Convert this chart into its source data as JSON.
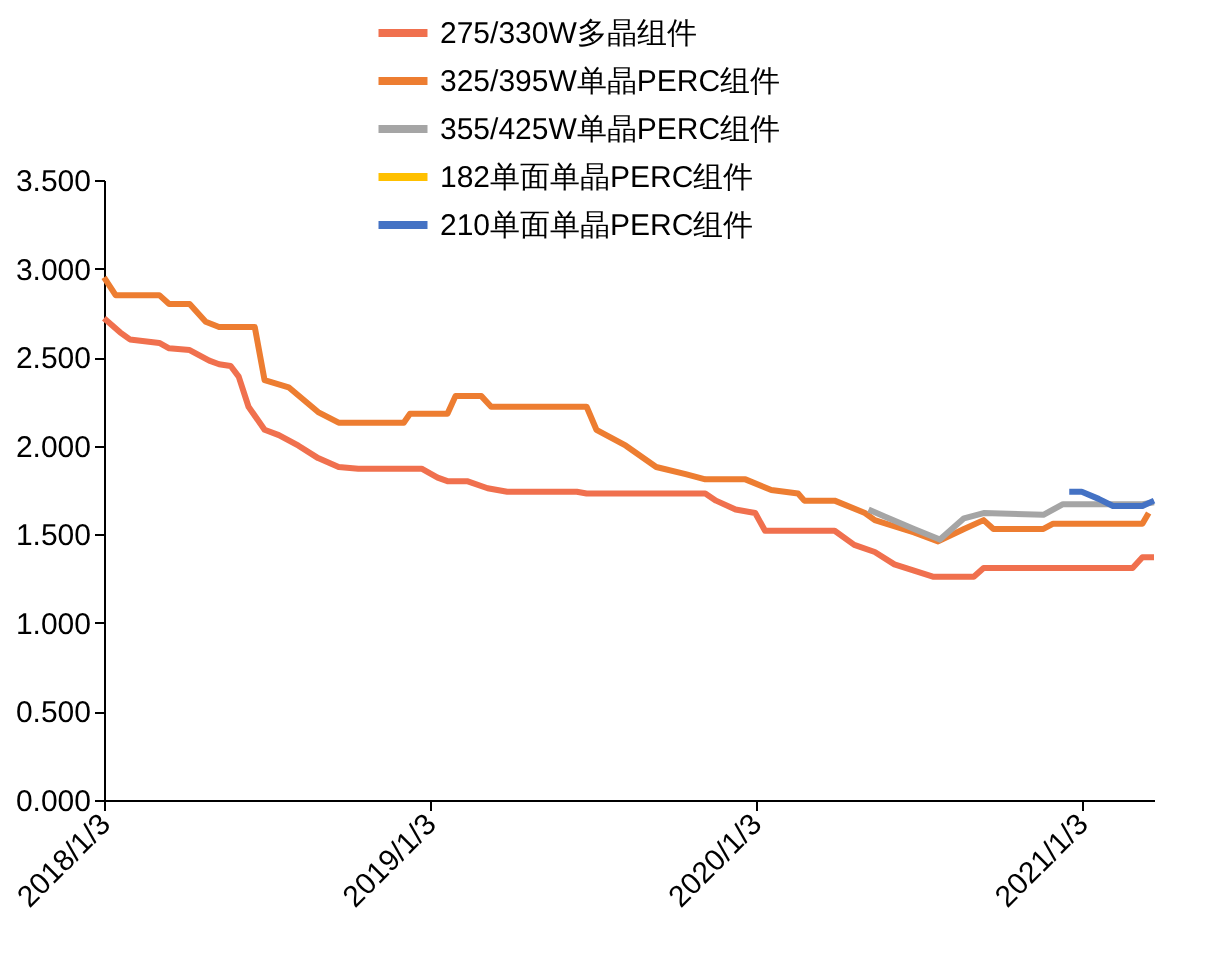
{
  "chart_data": {
    "type": "line",
    "xlim": [
      "2018-01-03",
      "2021-03-25"
    ],
    "xticks": [
      {
        "value": "2018-01-03",
        "label": "2018/1/3"
      },
      {
        "value": "2019-01-03",
        "label": "2019/1/3"
      },
      {
        "value": "2020-01-03",
        "label": "2020/1/3"
      },
      {
        "value": "2021-01-03",
        "label": "2021/1/3"
      }
    ],
    "ylim": [
      0,
      3.5
    ],
    "yticks": [
      {
        "value": 0,
        "label": "0.000"
      },
      {
        "value": 0.5,
        "label": "0.500"
      },
      {
        "value": 1,
        "label": "1.000"
      },
      {
        "value": 1.5,
        "label": "1.500"
      },
      {
        "value": 2,
        "label": "2.000"
      },
      {
        "value": 2.5,
        "label": "2.500"
      },
      {
        "value": 3,
        "label": "3.000"
      },
      {
        "value": 3.5,
        "label": "3.500"
      }
    ],
    "grid": false,
    "legend": "top",
    "marker": "none",
    "line_style": "solid",
    "series": [
      {
        "name": "275/330W多晶组件",
        "color": "#f0704e",
        "x": [
          "2018-01-03",
          "2018-01-21",
          "2018-02-01",
          "2018-03-06",
          "2018-03-17",
          "2018-04-09",
          "2018-05-01",
          "2018-05-12",
          "2018-05-25",
          "2018-06-03",
          "2018-06-14",
          "2018-07-02",
          "2018-07-18",
          "2018-08-09",
          "2018-08-31",
          "2018-09-23",
          "2018-10-15",
          "2018-12-25",
          "2019-01-12",
          "2019-01-23",
          "2019-02-14",
          "2019-03-09",
          "2019-03-31",
          "2019-06-17",
          "2019-06-28",
          "2019-11-08",
          "2019-11-20",
          "2019-12-12",
          "2020-01-03",
          "2020-01-14",
          "2020-04-01",
          "2020-04-23",
          "2020-05-16",
          "2020-06-07",
          "2020-07-21",
          "2020-09-04",
          "2020-09-15",
          "2021-03-01",
          "2021-03-12",
          "2021-03-25"
        ],
        "values": [
          2.72,
          2.64,
          2.6,
          2.58,
          2.55,
          2.54,
          2.48,
          2.46,
          2.45,
          2.39,
          2.22,
          2.09,
          2.06,
          2.0,
          1.93,
          1.88,
          1.87,
          1.87,
          1.82,
          1.8,
          1.8,
          1.76,
          1.74,
          1.74,
          1.73,
          1.73,
          1.69,
          1.64,
          1.62,
          1.52,
          1.52,
          1.44,
          1.4,
          1.33,
          1.26,
          1.26,
          1.31,
          1.31,
          1.37,
          1.37
        ]
      },
      {
        "name": "325/395W单晶PERC组件",
        "color": "#ed7d31",
        "x": [
          "2018-01-03",
          "2018-01-16",
          "2018-03-06",
          "2018-03-17",
          "2018-04-09",
          "2018-04-27",
          "2018-05-12",
          "2018-06-21",
          "2018-07-02",
          "2018-07-29",
          "2018-08-31",
          "2018-09-23",
          "2018-12-05",
          "2018-12-12",
          "2019-01-23",
          "2019-02-01",
          "2019-03-02",
          "2019-03-13",
          "2019-06-28",
          "2019-07-09",
          "2019-08-11",
          "2019-09-14",
          "2019-10-17",
          "2019-11-08",
          "2019-12-23",
          "2020-01-21",
          "2020-02-20",
          "2020-02-27",
          "2020-04-01",
          "2020-05-05",
          "2020-05-16",
          "2020-06-29",
          "2020-07-26",
          "2020-08-24",
          "2020-09-15",
          "2020-09-26",
          "2020-11-21",
          "2020-12-02",
          "2021-03-12",
          "2021-03-19"
        ],
        "values": [
          2.95,
          2.85,
          2.85,
          2.8,
          2.8,
          2.7,
          2.67,
          2.67,
          2.37,
          2.33,
          2.19,
          2.13,
          2.13,
          2.18,
          2.18,
          2.28,
          2.28,
          2.22,
          2.22,
          2.09,
          2.0,
          1.88,
          1.84,
          1.81,
          1.81,
          1.75,
          1.73,
          1.69,
          1.69,
          1.62,
          1.58,
          1.51,
          1.46,
          1.53,
          1.58,
          1.53,
          1.53,
          1.56,
          1.56,
          1.62
        ]
      },
      {
        "name": "355/425W单晶PERC组件",
        "color": "#a5a5a5",
        "x": [
          "2020-05-09",
          "2020-05-27",
          "2020-06-29",
          "2020-07-28",
          "2020-08-24",
          "2020-09-15",
          "2020-11-21",
          "2020-12-13",
          "2021-03-12",
          "2021-03-25"
        ],
        "values": [
          1.64,
          1.6,
          1.53,
          1.47,
          1.59,
          1.62,
          1.61,
          1.67,
          1.67,
          1.68
        ]
      },
      {
        "name": "182单面单晶PERC组件",
        "color": "#ffc000"
      },
      {
        "name": "210单面单晶PERC组件",
        "color": "#4472c4",
        "x": [
          "2020-12-20",
          "2021-01-03",
          "2021-01-22",
          "2021-02-07",
          "2021-03-12",
          "2021-03-25"
        ],
        "values": [
          1.74,
          1.74,
          1.7,
          1.66,
          1.66,
          1.69
        ]
      }
    ]
  }
}
